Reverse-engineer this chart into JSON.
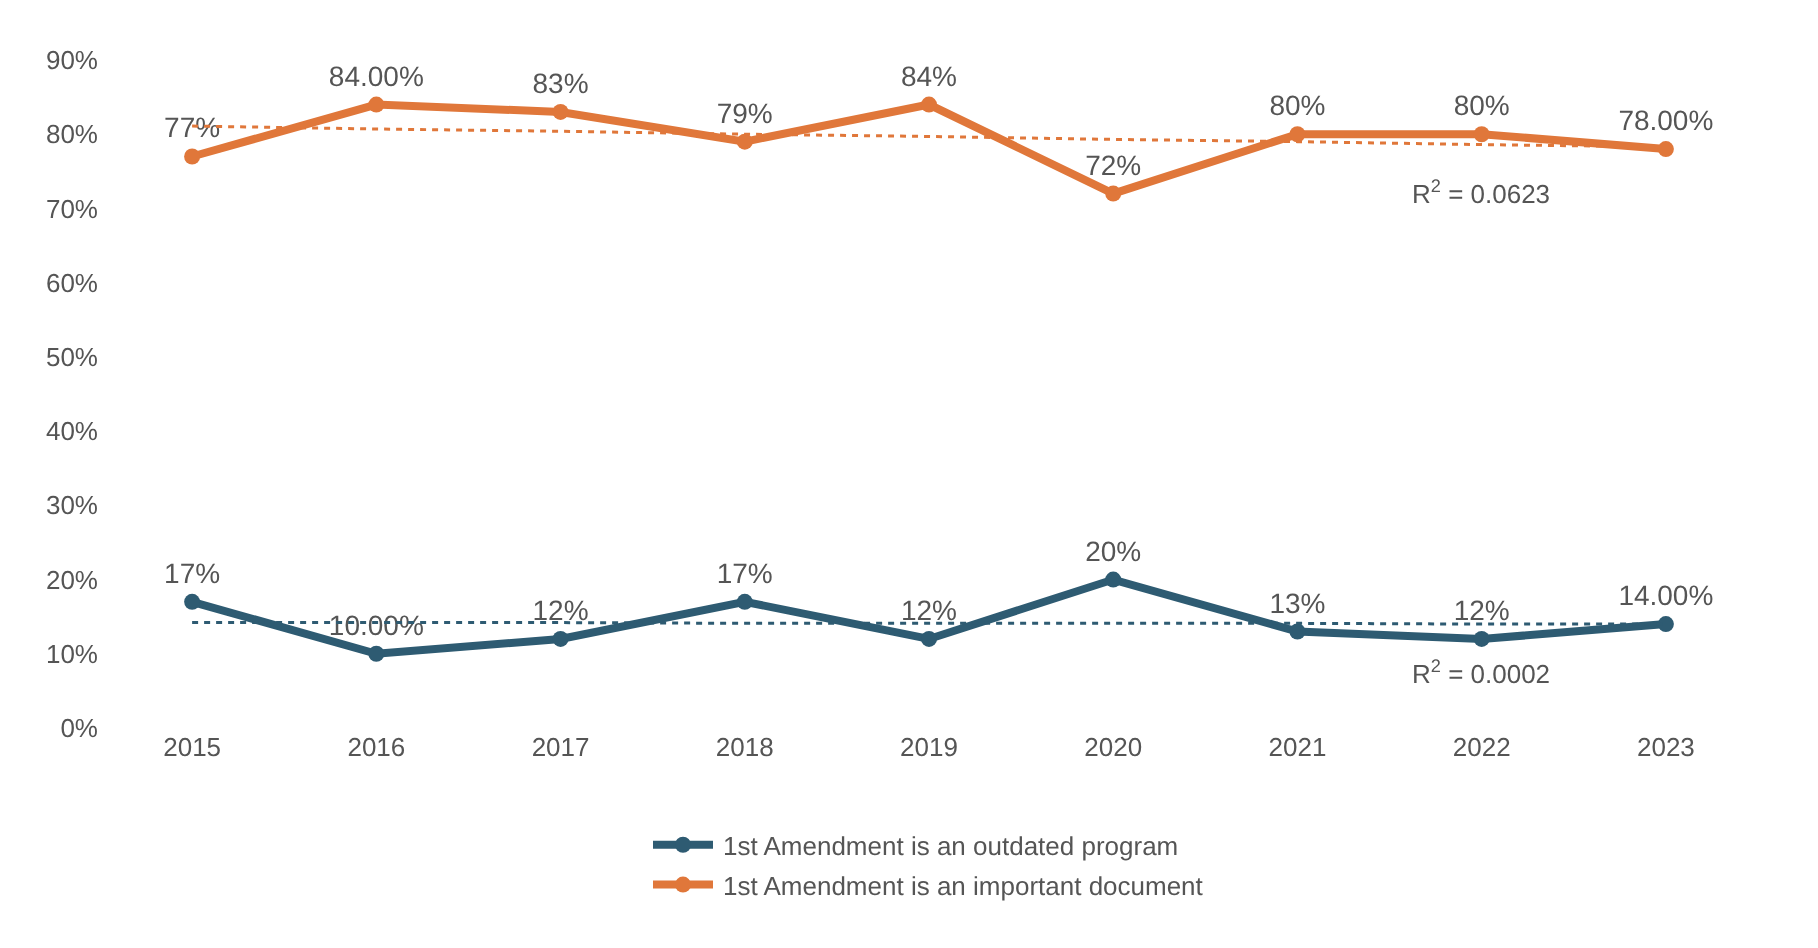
{
  "chart_data": {
    "type": "line",
    "categories": [
      "2015",
      "2016",
      "2017",
      "2018",
      "2019",
      "2020",
      "2021",
      "2022",
      "2023"
    ],
    "series": [
      {
        "name": "1st Amendment is an outdated program",
        "color": "#2e5b72",
        "values": [
          17,
          10,
          12,
          17,
          12,
          20,
          13,
          12,
          14
        ],
        "value_labels": [
          "17%",
          "10.00%",
          "12%",
          "17%",
          "12%",
          "20%",
          "13%",
          "12%",
          "14.00%"
        ],
        "marker": "circle"
      },
      {
        "name": "1st Amendment is an important document",
        "color": "#e0773a",
        "values": [
          77,
          84,
          83,
          79,
          84,
          72,
          80,
          80,
          78
        ],
        "value_labels": [
          "77%",
          "84.00%",
          "83%",
          "79%",
          "84%",
          "72%",
          "80%",
          "80%",
          "78.00%"
        ],
        "marker": "circle"
      },
      {
        "color": "#e0773a",
        "values": [
          81.1,
          80.7,
          80.4,
          80.0,
          79.7,
          79.3,
          79.0,
          78.6,
          78.3
        ],
        "line_style": "dotted",
        "marker": "none"
      },
      {
        "color": "#2e5b72",
        "values": [
          14.2,
          14.2,
          14.2,
          14.1,
          14.1,
          14.1,
          14.1,
          14.0,
          14.0
        ],
        "line_style": "dotted",
        "marker": "none"
      }
    ],
    "ylim": [
      0,
      90
    ],
    "yticks": [
      {
        "value": 0,
        "label": "0%"
      },
      {
        "value": 10,
        "label": "10%"
      },
      {
        "value": 20,
        "label": "20%"
      },
      {
        "value": 30,
        "label": "30%"
      },
      {
        "value": 40,
        "label": "40%"
      },
      {
        "value": 50,
        "label": "50%"
      },
      {
        "value": 60,
        "label": "60%"
      },
      {
        "value": 70,
        "label": "70%"
      },
      {
        "value": 80,
        "label": "80%"
      },
      {
        "value": 90,
        "label": "90%"
      }
    ],
    "annotations": [
      "R$^{2}$ = 0.0623",
      "R$^{2}$ = 0.0002"
    ],
    "legend": "bottom"
  }
}
